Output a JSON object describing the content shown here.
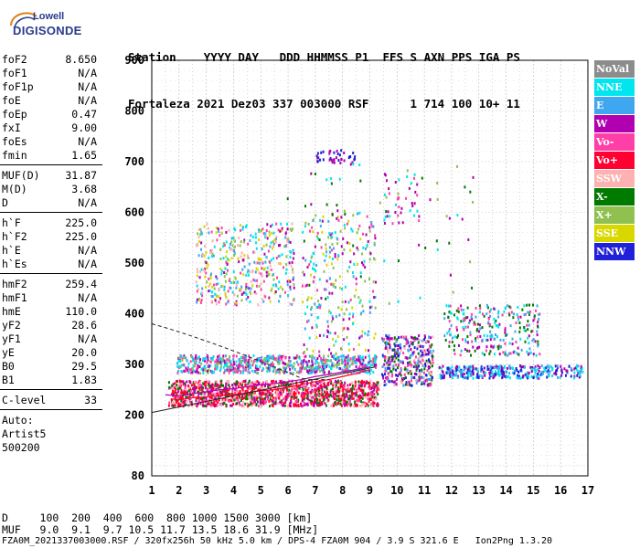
{
  "logo": {
    "top": "Lowell",
    "main": "DIGISONDE"
  },
  "header": {
    "line1": "Station    YYYY DAY   DDD HHMMSS P1  FFS S AXN PPS IGA PS",
    "line2": "Fortaleza 2021 Dez03 337 003000 RSF      1 714 100 10+ 11"
  },
  "params_group1": [
    {
      "label": "foF2",
      "value": "8.650"
    },
    {
      "label": "foF1",
      "value": "N/A"
    },
    {
      "label": "foF1p",
      "value": "N/A"
    },
    {
      "label": "foE",
      "value": "N/A"
    },
    {
      "label": "foEp",
      "value": "0.47"
    },
    {
      "label": "fxI",
      "value": "9.00"
    },
    {
      "label": "foEs",
      "value": "N/A"
    },
    {
      "label": "fmin",
      "value": "1.65"
    }
  ],
  "params_group2": [
    {
      "label": "MUF(D)",
      "value": "31.87"
    },
    {
      "label": "M(D)",
      "value": "3.68"
    },
    {
      "label": "D",
      "value": "N/A"
    }
  ],
  "params_group3": [
    {
      "label": "h`F",
      "value": "225.0"
    },
    {
      "label": "h`F2",
      "value": "225.0"
    },
    {
      "label": "h`E",
      "value": "N/A"
    },
    {
      "label": "h`Es",
      "value": "N/A"
    }
  ],
  "params_group4": [
    {
      "label": "hmF2",
      "value": "259.4"
    },
    {
      "label": "hmF1",
      "value": "N/A"
    },
    {
      "label": "hmE",
      "value": "110.0"
    },
    {
      "label": "yF2",
      "value": "28.6"
    },
    {
      "label": "yF1",
      "value": "N/A"
    },
    {
      "label": "yE",
      "value": "20.0"
    },
    {
      "label": "B0",
      "value": "29.5"
    },
    {
      "label": "B1",
      "value": "1.83"
    }
  ],
  "clevel": {
    "label": "C-level",
    "value": "33"
  },
  "auto_lines": [
    "Auto:",
    "Artist5",
    "500200"
  ],
  "footer": {
    "d_line": "D     100  200  400  600  800 1000 1500 3000 [km]",
    "muf_line": "MUF   9.0  9.1  9.7 10.5 11.7 13.5 18.6 31.9 [MHz]",
    "file_line": "FZA0M_2021337003000.RSF / 320fx256h 50 kHz 5.0 km / DPS-4 FZA0M 904 / 3.9 S 321.6 E   Ion2Png 1.3.20"
  },
  "legend": [
    {
      "label": "NoVal",
      "color": "#8c8c8c"
    },
    {
      "label": "NNE",
      "color": "#00e5ee"
    },
    {
      "label": "E",
      "color": "#3fa7f0"
    },
    {
      "label": "W",
      "color": "#b000b0"
    },
    {
      "label": "Vo-",
      "color": "#ff3fa8"
    },
    {
      "label": "Vo+",
      "color": "#ff0030"
    },
    {
      "label": "SSW",
      "color": "#ffb0b0"
    },
    {
      "label": "X-",
      "color": "#007a00"
    },
    {
      "label": "X+",
      "color": "#8fc050"
    },
    {
      "label": "SSE",
      "color": "#d8d800"
    },
    {
      "label": "NNW",
      "color": "#2020d8"
    }
  ],
  "chart_data": {
    "type": "scatter",
    "xlabel": "",
    "ylabel": "",
    "x_ticks": [
      1,
      2,
      3,
      4,
      5,
      6,
      7,
      8,
      9,
      10,
      11,
      12,
      13,
      14,
      15,
      16,
      17
    ],
    "y_ticks": [
      80,
      200,
      300,
      400,
      500,
      600,
      700,
      800,
      900
    ],
    "xlim": [
      1,
      17
    ],
    "ylim": [
      80,
      900
    ],
    "grid": true,
    "legend_position": "right",
    "traces": [
      {
        "name": "W",
        "x": [
          1.5,
          2.0,
          2.5,
          3.0,
          3.5,
          4.0,
          4.5,
          5.0,
          5.5,
          6.0,
          6.5,
          7.0,
          7.5,
          8.0,
          8.5,
          9.0
        ],
        "y": [
          240,
          238,
          242,
          246,
          250,
          252,
          256,
          260,
          262,
          266,
          270,
          276,
          280,
          285,
          290,
          295
        ]
      },
      {
        "name": "Vo+",
        "x": [
          1.7,
          2.0,
          2.5,
          3.0,
          3.5,
          4.0,
          4.5,
          5.0,
          5.5,
          6.0,
          6.5,
          7.0,
          7.5,
          8.0,
          8.5,
          9.0
        ],
        "y": [
          232,
          230,
          234,
          236,
          238,
          240,
          244,
          248,
          250,
          255,
          260,
          266,
          270,
          276,
          282,
          290
        ]
      },
      {
        "name": "E",
        "x": [
          2,
          2.5,
          3,
          3.5,
          4,
          4.5,
          5,
          5.5,
          6,
          6.5,
          7,
          7.5,
          8,
          8.5,
          9
        ],
        "y": [
          290,
          288,
          292,
          295,
          300,
          298,
          305,
          302,
          300,
          310,
          305,
          300,
          310,
          305,
          300
        ]
      },
      {
        "name": "NNW",
        "x": [
          9.5,
          9.8,
          10.0,
          10.3,
          10.6,
          10.9,
          11.2
        ],
        "y": [
          330,
          325,
          335,
          320,
          310,
          330,
          340
        ]
      },
      {
        "name": "E",
        "x": [
          12.5,
          13.0,
          13.5,
          14.0,
          14.5,
          15.0,
          15.5,
          16.0,
          16.5
        ],
        "y": [
          285,
          280,
          282,
          285,
          278,
          282,
          280,
          284,
          285
        ]
      }
    ]
  }
}
